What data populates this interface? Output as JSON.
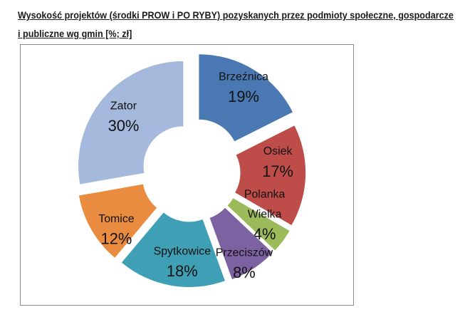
{
  "title": {
    "line1": "Wysokość projektów (środki PROW i PO RYBY) pozyskanych przez podmioty społeczne, gospodarcze",
    "line2": "i publiczne wg gmin [%; zł]"
  },
  "chart_data": {
    "type": "pie",
    "subtype": "exploded-donut",
    "title": "",
    "legend_position": "none",
    "slice_label_format": "category name + percent shown on each slice",
    "frame_border_color": "#8c8c8c",
    "label_text_color": "#121212",
    "slices": [
      {
        "label": "Brzeźnica",
        "value": 19,
        "pct_label": "19%",
        "color": "#4A78B2"
      },
      {
        "label": "Osiek",
        "value": 17,
        "pct_label": "17%",
        "color": "#BE4C49"
      },
      {
        "label": "Polanka Wielka",
        "value": 4,
        "pct_label": "4%",
        "color": "#9BBA59"
      },
      {
        "label": "Przeciszów",
        "value": 8,
        "pct_label": "8%",
        "color": "#7D62A2"
      },
      {
        "label": "Spytkowice",
        "value": 18,
        "pct_label": "18%",
        "color": "#3FA0B5"
      },
      {
        "label": "Tomice",
        "value": 12,
        "pct_label": "12%",
        "color": "#E98C3F"
      },
      {
        "label": "Zator",
        "value": 30,
        "pct_label": "30%",
        "color": "#A5B9DC"
      }
    ]
  }
}
